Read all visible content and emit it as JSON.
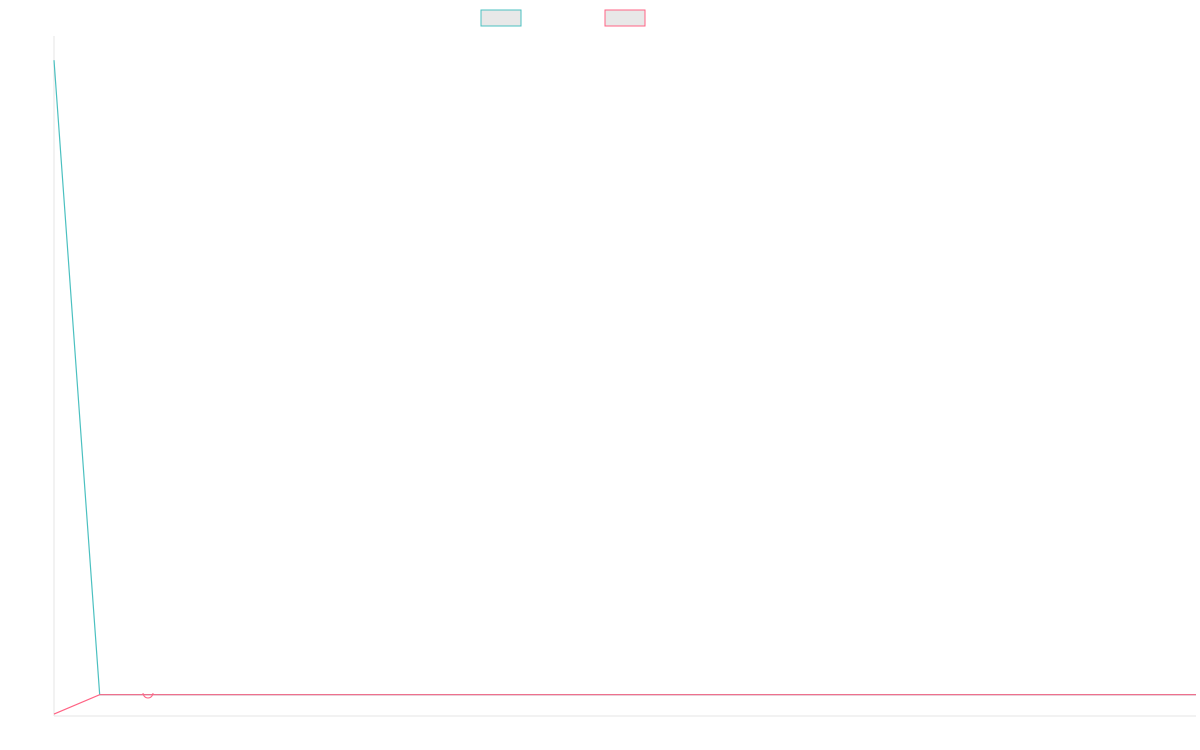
{
  "colors": {
    "series_a": "#4bc0c0",
    "series_b": "#ff6384",
    "axis": "#e5e5e5",
    "legend_fill": "#e8e8e8"
  },
  "legend": [
    {
      "color": "#4bc0c0"
    },
    {
      "color": "#ff6384"
    }
  ],
  "chart_data": {
    "type": "line",
    "title": "",
    "xlabel": "",
    "ylabel": "",
    "legend_position": "top-center",
    "grid": false,
    "series": [
      {
        "color": "#4bc0c0",
        "x": [
          0,
          1,
          2,
          3,
          4,
          5,
          6,
          7,
          8,
          9,
          10,
          11,
          12,
          13,
          14,
          15,
          16,
          17,
          18,
          19,
          20,
          21,
          22,
          23,
          24,
          25
        ],
        "values": [
          655,
          0,
          0,
          0,
          0,
          0,
          0,
          0,
          0,
          0,
          0,
          0,
          0,
          0,
          0,
          0,
          0,
          0,
          0,
          0,
          0,
          0,
          0,
          0,
          0,
          0
        ]
      },
      {
        "color": "#ff6384",
        "x": [
          0,
          1,
          2,
          3,
          4,
          5,
          6,
          7,
          8,
          9,
          10,
          11,
          12,
          13,
          14,
          15,
          16,
          17,
          18,
          19,
          20,
          21,
          22,
          23,
          24,
          25
        ],
        "values": [
          -20,
          0,
          0,
          0,
          0,
          0,
          0,
          0,
          0,
          0,
          0,
          0,
          0,
          0,
          0,
          0,
          0,
          0,
          0,
          0,
          0,
          0,
          0,
          0,
          0,
          0
        ]
      }
    ],
    "xlim": [
      0,
      25
    ],
    "ylim": [
      -22,
      680
    ]
  }
}
